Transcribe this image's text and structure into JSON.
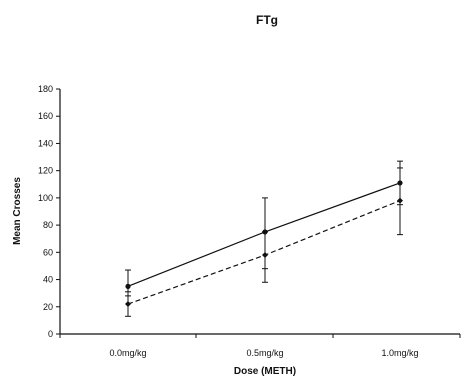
{
  "chart_data": {
    "type": "line",
    "title": "FTg",
    "xlabel": "Dose (METH)",
    "ylabel": "Mean Crosses",
    "categories": [
      "0.0mg/kg",
      "0.5mg/kg",
      "1.0mg/kg"
    ],
    "ylim": [
      0,
      180
    ],
    "yticks": [
      0,
      20,
      40,
      60,
      80,
      100,
      120,
      140,
      160,
      180
    ],
    "grid": false,
    "series": [
      {
        "line_style": "solid",
        "marker": "circle",
        "values": [
          35,
          75,
          111
        ],
        "err_low": [
          28,
          48,
          95
        ],
        "err_high": [
          47,
          100,
          127
        ]
      },
      {
        "line_style": "dashed",
        "marker": "diamond",
        "values": [
          22,
          58,
          98
        ],
        "err_low": [
          13,
          38,
          73
        ],
        "err_high": [
          31,
          75,
          122
        ]
      }
    ]
  }
}
